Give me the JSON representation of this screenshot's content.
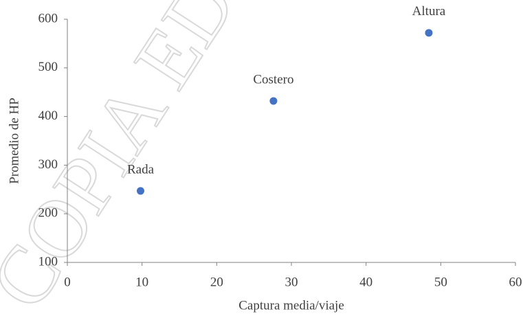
{
  "chart_data": {
    "type": "scatter",
    "watermark": "COPIA ED",
    "x_label": "Captura media/viaje",
    "y_label": "Promedio de HP",
    "series": [
      {
        "color": "#4472c4",
        "x": [
          9.8,
          27.6,
          48.4
        ],
        "values": [
          247,
          432,
          572
        ],
        "point_labels": [
          "Rada",
          "Costero",
          "Altura"
        ]
      }
    ],
    "xlim": [
      0,
      60
    ],
    "xticks": [
      0,
      10,
      20,
      30,
      40,
      50,
      60
    ],
    "ylim": [
      100,
      600
    ],
    "yticks": [
      100,
      200,
      300,
      400,
      500,
      600
    ],
    "grid": false
  }
}
